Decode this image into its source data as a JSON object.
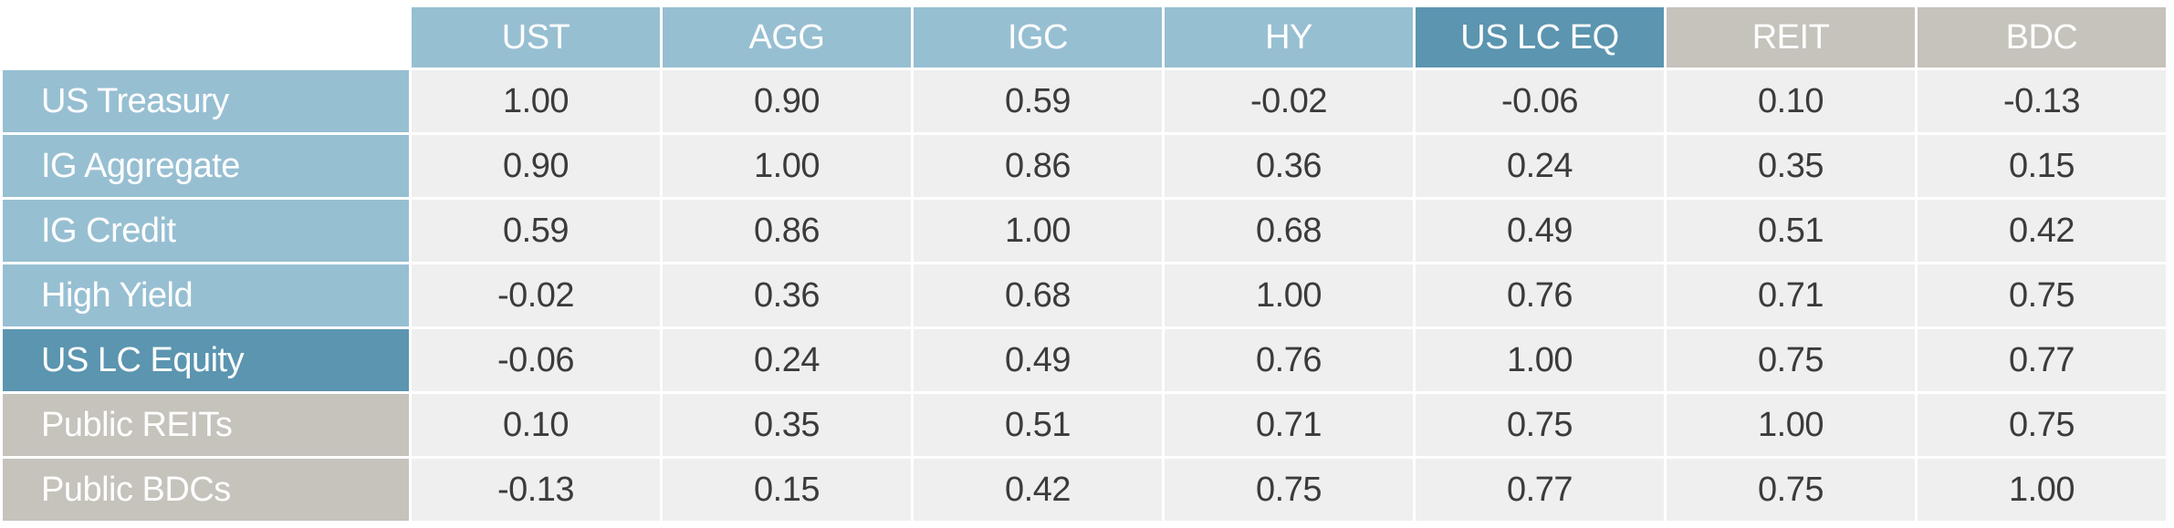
{
  "table": {
    "columns": [
      "UST",
      "AGG",
      "IGC",
      "HY",
      "US LC EQ",
      "REIT",
      "BDC"
    ],
    "rows": [
      [
        "US Treasury",
        "1.00",
        "0.90",
        "0.59",
        "-0.02",
        "-0.06",
        "0.10",
        "-0.13"
      ],
      [
        "IG Aggregate",
        "0.90",
        "1.00",
        "0.86",
        "0.36",
        "0.24",
        "0.35",
        "0.15"
      ],
      [
        "IG Credit",
        "0.59",
        "0.86",
        "1.00",
        "0.68",
        "0.49",
        "0.51",
        "0.42"
      ],
      [
        "High Yield",
        "-0.02",
        "0.36",
        "0.68",
        "1.00",
        "0.76",
        "0.71",
        "0.75"
      ],
      [
        "US LC Equity",
        "-0.06",
        "0.24",
        "0.49",
        "0.76",
        "1.00",
        "0.75",
        "0.77"
      ],
      [
        "Public REITs",
        "0.10",
        "0.35",
        "0.51",
        "0.71",
        "0.75",
        "1.00",
        "0.75"
      ],
      [
        "Public BDCs",
        "-0.13",
        "0.15",
        "0.42",
        "0.75",
        "0.77",
        "0.75",
        "1.00"
      ]
    ]
  }
}
